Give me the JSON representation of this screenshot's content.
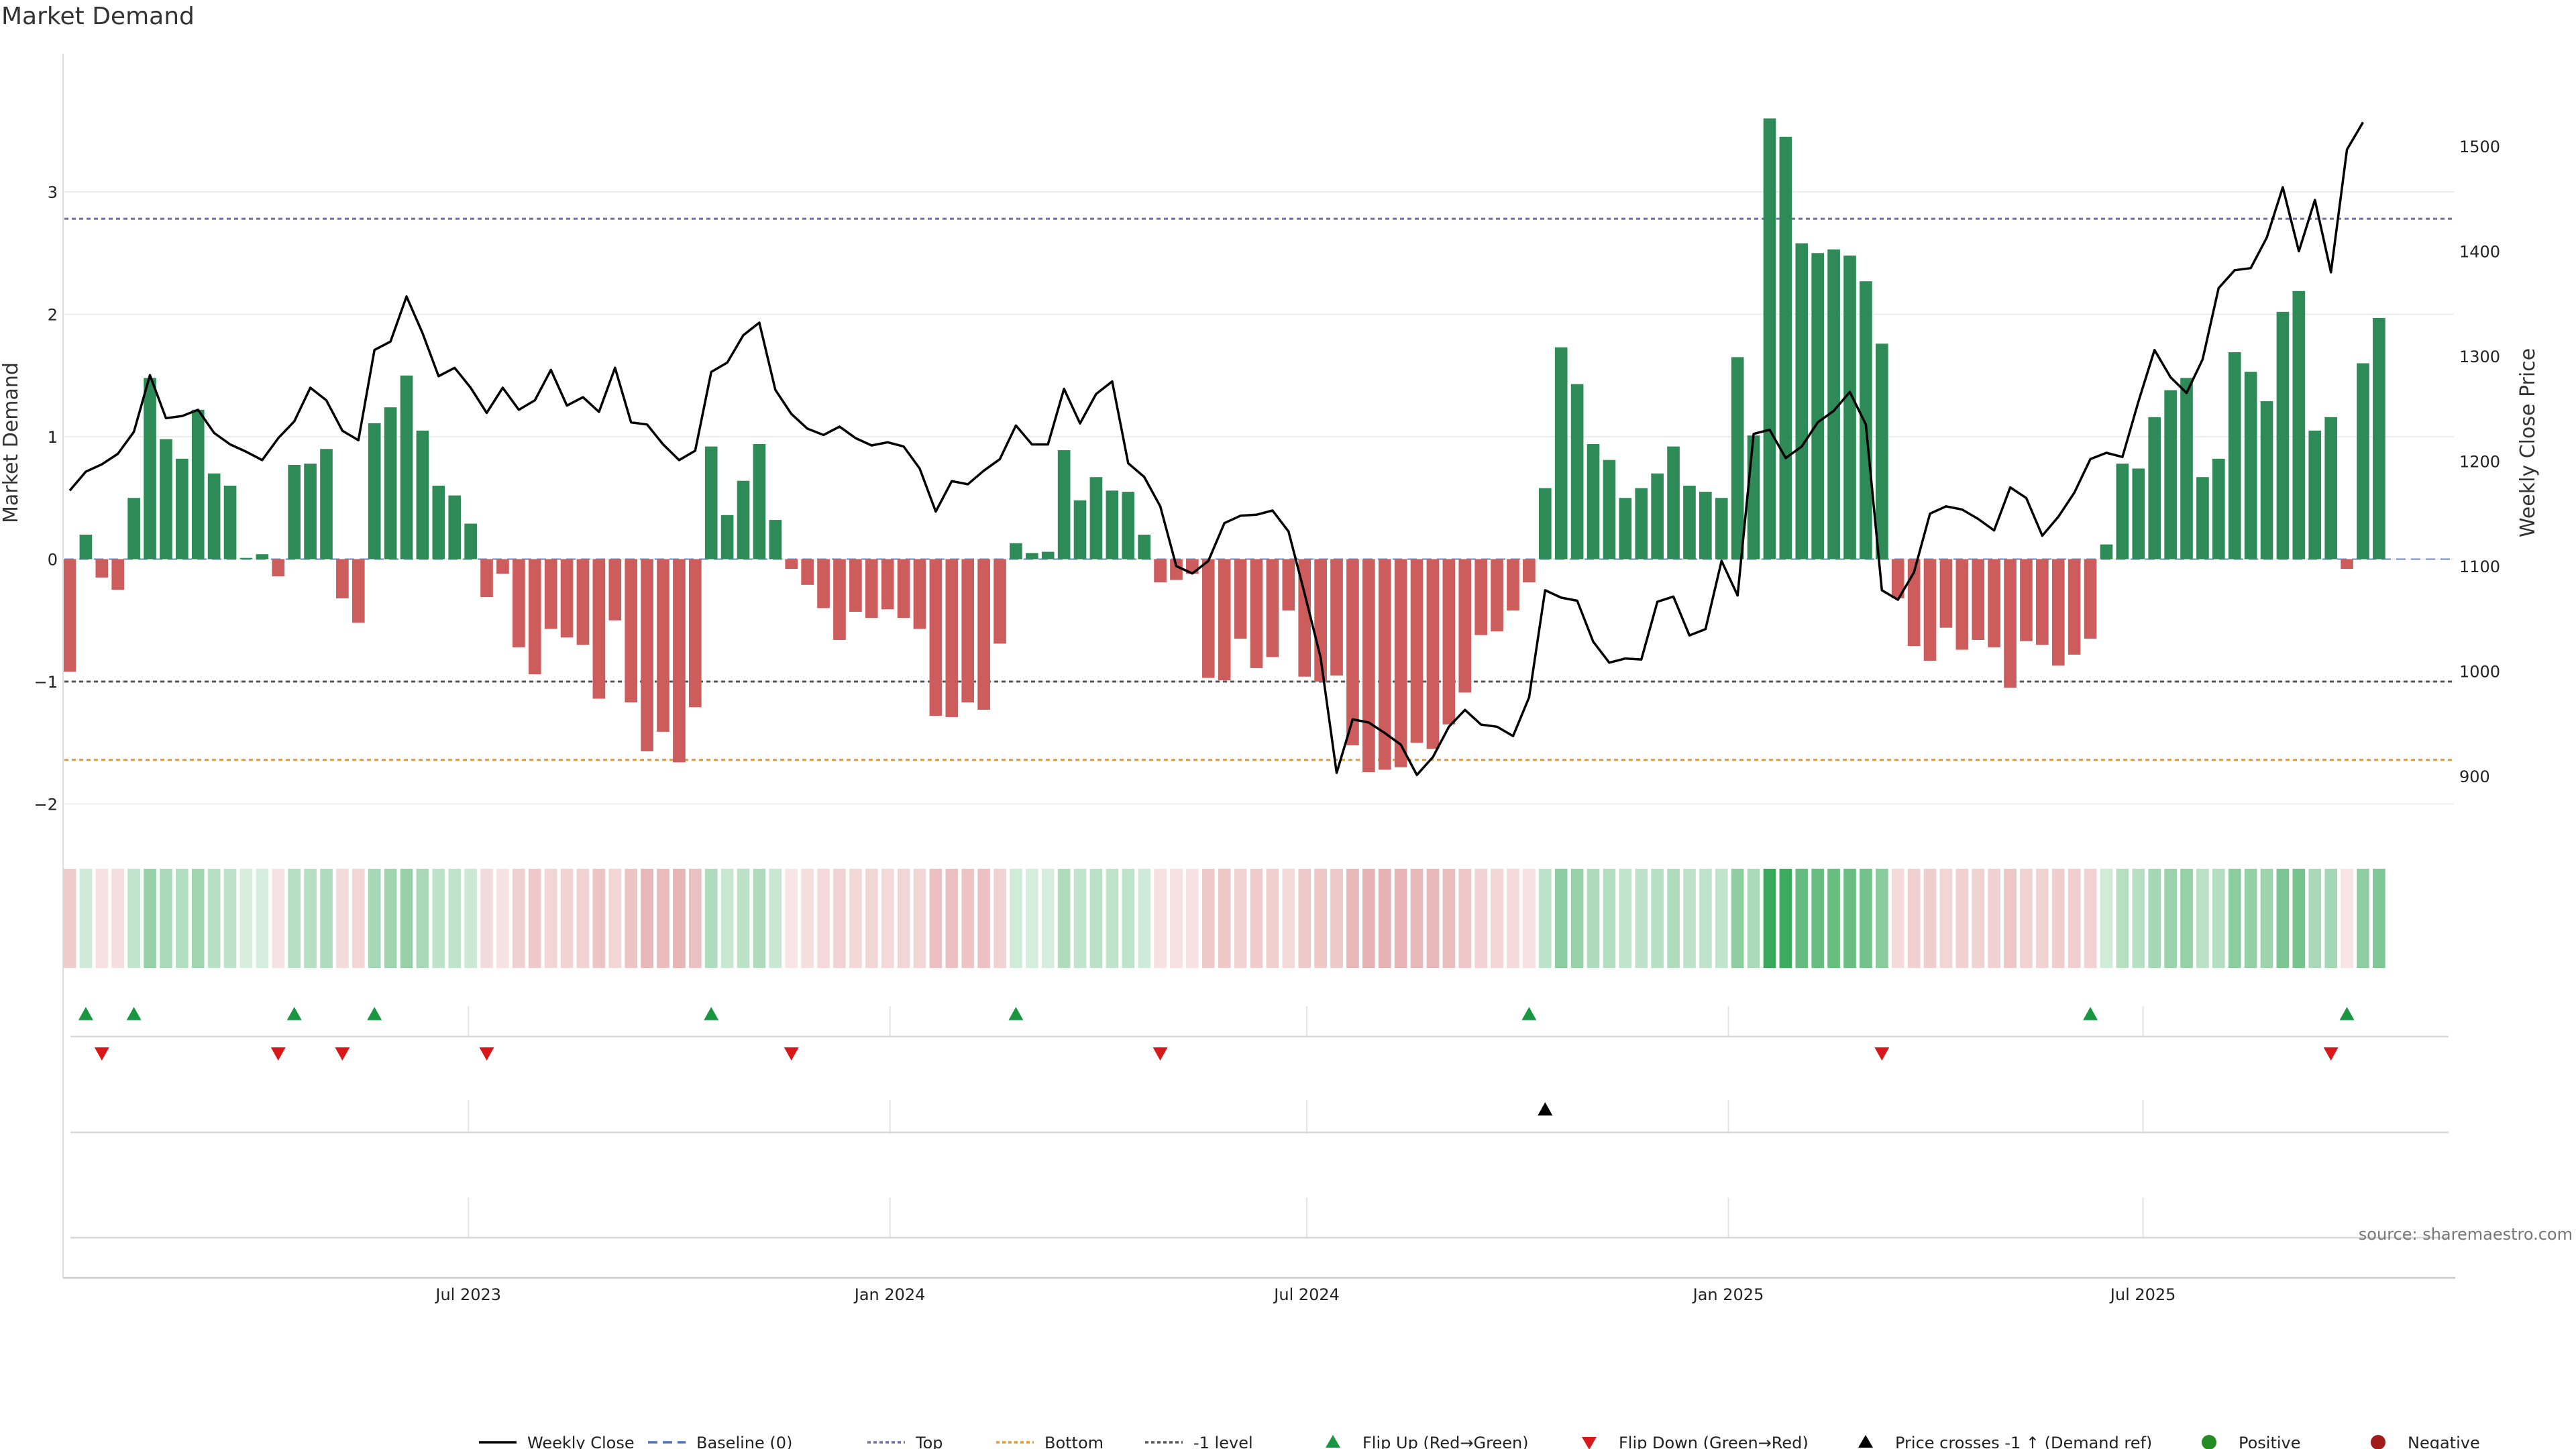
{
  "title": "Market Demand",
  "source_note": "source: sharemaestro.com",
  "colors": {
    "positive": "#2e8b57",
    "negative": "#cd5c5c",
    "price_line": "#000000",
    "top_level": "#6b6fa8",
    "bottom_level": "#e69a2e",
    "minus_one_level": "#555555",
    "flip_up": "#1a9641",
    "flip_down": "#d7191c",
    "cross": "#000000",
    "positive_dot": "#228b22",
    "negative_dot": "#a11b1b"
  },
  "chart_data": {
    "type": "bar",
    "x_start": "2023-01-08",
    "x_step_days": 7,
    "x_tick_labels": [
      "Jul 2023",
      "Jan 2024",
      "Jul 2024",
      "Jan 2025",
      "Jul 2025"
    ],
    "x_tick_dates": [
      "2023-07-01",
      "2024-01-01",
      "2024-07-01",
      "2025-01-01",
      "2025-07-01"
    ],
    "x_end": "2025-11-09",
    "ylabel_left": "Market Demand",
    "ylabel_right": "Weekly Close Price",
    "ylim_left": [
      -2.2,
      3.8
    ],
    "yticks_left": [
      -2,
      -1,
      0,
      1,
      2,
      3
    ],
    "ylim_right": [
      850,
      1550
    ],
    "yticks_right": [
      900,
      1000,
      1100,
      1200,
      1300,
      1400,
      1500
    ],
    "levels": {
      "top": 2.78,
      "bottom": -1.64,
      "minus_one": -1
    },
    "series": [
      {
        "name": "Market Demand",
        "values": [
          -0.92,
          0.2,
          -0.15,
          -0.25,
          0.5,
          1.48,
          0.98,
          0.82,
          1.22,
          0.7,
          0.6,
          0.01,
          0.04,
          -0.14,
          0.77,
          0.78,
          0.9,
          -0.32,
          -0.52,
          1.11,
          1.24,
          1.5,
          1.05,
          0.6,
          0.52,
          0.29,
          -0.31,
          -0.12,
          -0.72,
          -0.94,
          -0.57,
          -0.64,
          -0.7,
          -1.14,
          -0.5,
          -1.17,
          -1.57,
          -1.41,
          -1.66,
          -1.21,
          0.92,
          0.36,
          0.64,
          0.94,
          0.32,
          -0.08,
          -0.21,
          -0.4,
          -0.66,
          -0.43,
          -0.48,
          -0.41,
          -0.48,
          -0.57,
          -1.28,
          -1.29,
          -1.17,
          -1.23,
          -0.69,
          0.13,
          0.05,
          0.06,
          0.89,
          0.48,
          0.67,
          0.56,
          0.55,
          0.2,
          -0.19,
          -0.17,
          -0.12,
          -0.97,
          -0.99,
          -0.65,
          -0.89,
          -0.8,
          -0.42,
          -0.96,
          -1.0,
          -0.95,
          -1.52,
          -1.74,
          -1.72,
          -1.7,
          -1.5,
          -1.55,
          -1.35,
          -1.09,
          -0.62,
          -0.59,
          -0.42,
          -0.19,
          0.58,
          1.73,
          1.43,
          0.94,
          0.81,
          0.5,
          0.58,
          0.7,
          0.92,
          0.6,
          0.55,
          0.5,
          1.65,
          1.01,
          3.6,
          3.45,
          2.58,
          2.5,
          2.53,
          2.48,
          2.27,
          1.76,
          -0.32,
          -0.71,
          -0.83,
          -0.56,
          -0.74,
          -0.66,
          -0.72,
          -1.05,
          -0.67,
          -0.7,
          -0.87,
          -0.78,
          -0.65,
          0.12,
          0.78,
          0.74,
          1.16,
          1.38,
          1.48,
          0.67,
          0.82,
          1.69,
          1.53,
          1.29,
          2.02,
          2.19,
          1.05,
          1.16,
          -0.08,
          1.6,
          1.97
        ]
      },
      {
        "name": "Weekly Close",
        "values": [
          1172,
          1190,
          1197,
          1207,
          1228,
          1282,
          1241,
          1243,
          1249,
          1227,
          1216,
          1209,
          1201,
          1222,
          1238,
          1270,
          1258,
          1229,
          1220,
          1306,
          1314,
          1357,
          1322,
          1281,
          1289,
          1270,
          1246,
          1270,
          1249,
          1258,
          1287,
          1253,
          1261,
          1247,
          1289,
          1237,
          1235,
          1216,
          1201,
          1210,
          1285,
          1294,
          1320,
          1332,
          1268,
          1245,
          1231,
          1225,
          1233,
          1222,
          1215,
          1218,
          1214,
          1193,
          1152,
          1181,
          1178,
          1191,
          1202,
          1234,
          1216,
          1216,
          1269,
          1236,
          1264,
          1276,
          1198,
          1185,
          1157,
          1100,
          1093,
          1105,
          1141,
          1148,
          1149,
          1153,
          1133,
          1074,
          1013,
          903,
          954,
          951,
          941,
          930,
          901,
          918,
          947,
          963,
          949,
          947,
          938,
          975,
          1077,
          1070,
          1067,
          1028,
          1008,
          1012,
          1011,
          1066,
          1071,
          1034,
          1040,
          1105,
          1072,
          1226,
          1230,
          1203,
          1214,
          1237,
          1248,
          1266,
          1235,
          1077,
          1068,
          1094,
          1150,
          1157,
          1154,
          1145,
          1134,
          1175,
          1165,
          1129,
          1147,
          1170,
          1202,
          1208,
          1204,
          1257,
          1306,
          1280,
          1265,
          1297,
          1365,
          1382,
          1384,
          1413,
          1461,
          1400,
          1449,
          1380,
          1497,
          1523
        ]
      }
    ],
    "signals": {
      "flip_up_idx": [
        1,
        4,
        14,
        19,
        40,
        59,
        91,
        126,
        142
      ],
      "flip_down_idx": [
        2,
        13,
        17,
        26,
        45,
        68,
        113,
        141
      ],
      "price_cross_idx": [
        92
      ]
    },
    "legend": [
      {
        "label": "Weekly Close",
        "kind": "line",
        "color": "#000000",
        "dash": ""
      },
      {
        "label": "Baseline (0)",
        "kind": "line",
        "color": "#4a72b8",
        "dash": "14,8"
      },
      {
        "label": "Top",
        "kind": "line",
        "color": "#6b6fa8",
        "dash": "5,4"
      },
      {
        "label": "Bottom",
        "kind": "line",
        "color": "#e69a2e",
        "dash": "5,4"
      },
      {
        "label": "-1 level",
        "kind": "line",
        "color": "#555555",
        "dash": "5,4"
      },
      {
        "label": "Flip Up (Red→Green)",
        "kind": "tri-up",
        "color": "#1a9641"
      },
      {
        "label": "Flip Down (Green→Red)",
        "kind": "tri-down",
        "color": "#d7191c"
      },
      {
        "label": "Price crosses -1 ↑ (Demand ref)",
        "kind": "tri-up",
        "color": "#000000"
      },
      {
        "label": "Positive",
        "kind": "dot",
        "color": "#228b22"
      },
      {
        "label": "Negative",
        "kind": "dot",
        "color": "#a11b1b"
      }
    ],
    "legend_position": "bottom-center",
    "grid": true
  }
}
